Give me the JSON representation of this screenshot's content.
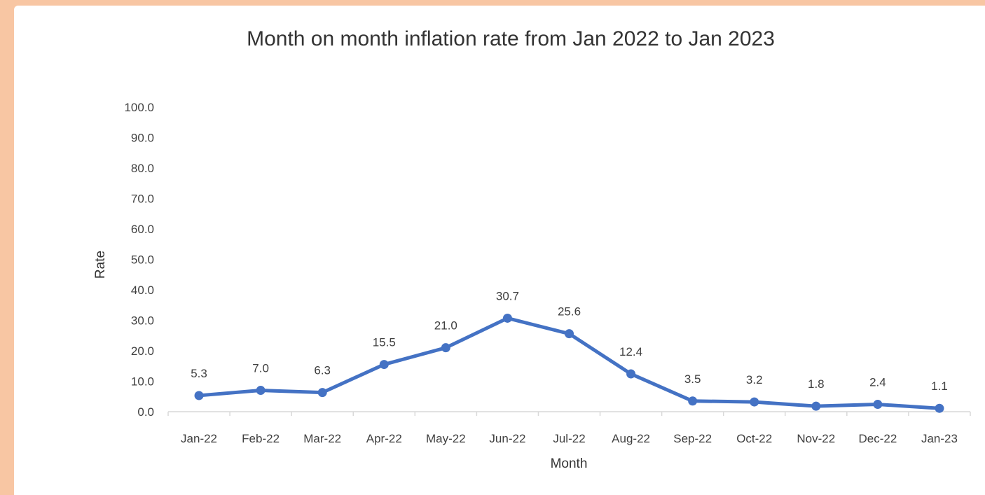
{
  "chart_data": {
    "type": "line",
    "title": "Month on month inflation rate from Jan 2022 to Jan 2023",
    "xlabel": "Month",
    "ylabel": "Rate",
    "categories": [
      "Jan-22",
      "Feb-22",
      "Mar-22",
      "Apr-22",
      "May-22",
      "Jun-22",
      "Jul-22",
      "Aug-22",
      "Sep-22",
      "Oct-22",
      "Nov-22",
      "Dec-22",
      "Jan-23"
    ],
    "series": [
      {
        "values": [
          5.3,
          7.0,
          6.3,
          15.5,
          21.0,
          30.7,
          25.6,
          12.4,
          3.5,
          3.2,
          1.8,
          2.4,
          1.1
        ],
        "color": "#4472c4"
      }
    ],
    "ylim": [
      0,
      100
    ],
    "yticks": [
      "0.0",
      "10.0",
      "20.0",
      "30.0",
      "40.0",
      "50.0",
      "60.0",
      "70.0",
      "80.0",
      "90.0",
      "100.0"
    ],
    "data_labels": [
      "5.3",
      "7.0",
      "6.3",
      "15.5",
      "21.0",
      "30.7",
      "25.6",
      "12.4",
      "3.5",
      "3.2",
      "1.8",
      "2.4",
      "1.1"
    ],
    "grid": false,
    "legend": "none"
  }
}
